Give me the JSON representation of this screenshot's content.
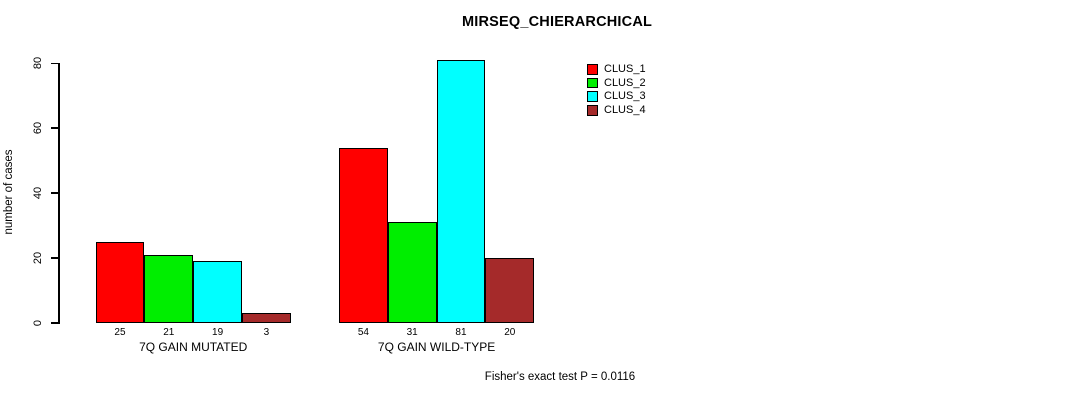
{
  "chart_data": {
    "type": "bar",
    "title": "MIRSEQ_CHIERARCHICAL",
    "ylabel": "number of cases",
    "xlabel": "",
    "categories": [
      "7Q GAIN MUTATED",
      "7Q GAIN WILD-TYPE"
    ],
    "series": [
      {
        "name": "CLUS_1",
        "color": "#ff0000",
        "values": [
          25,
          54
        ]
      },
      {
        "name": "CLUS_2",
        "color": "#00ee00",
        "values": [
          21,
          31
        ]
      },
      {
        "name": "CLUS_3",
        "color": "#00ffff",
        "values": [
          19,
          81
        ]
      },
      {
        "name": "CLUS_4",
        "color": "#a52a2a",
        "values": [
          3,
          20
        ]
      }
    ],
    "yticks": [
      0,
      20,
      40,
      60,
      80
    ],
    "ylim": [
      0,
      86
    ],
    "grid": false,
    "bar_value_labels_shown": true,
    "legend_position": "top-right",
    "legend_entries": [
      "CLUS_1",
      "CLUS_2",
      "CLUS_3",
      "CLUS_4"
    ],
    "annotation": "Fisher's exact test P = 0.0116"
  }
}
